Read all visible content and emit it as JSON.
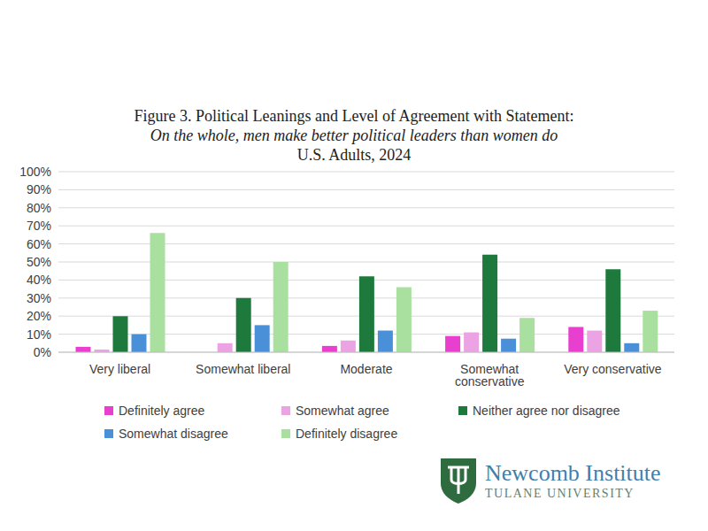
{
  "chart_data": {
    "type": "bar",
    "title": "Figure 3. Political Leanings and Level of Agreement with Statement:",
    "statement": "On the whole, men make better political leaders than women do",
    "population": "U.S. Adults, 2024",
    "categories": [
      "Very liberal",
      "Somewhat liberal",
      "Moderate",
      "Somewhat conservative",
      "Very conservative"
    ],
    "series": [
      {
        "name": "Definitely agree",
        "color": "#e83fcf",
        "values": [
          3,
          0,
          3.5,
          9,
          14
        ]
      },
      {
        "name": "Somewhat agree",
        "color": "#eba3e3",
        "values": [
          1.5,
          5,
          6.5,
          11,
          12
        ]
      },
      {
        "name": "Neither agree nor disagree",
        "color": "#1e7a3c",
        "values": [
          20,
          30,
          42,
          54,
          46
        ]
      },
      {
        "name": "Somewhat disagree",
        "color": "#4a90d9",
        "values": [
          10,
          15,
          12,
          7.5,
          5
        ]
      },
      {
        "name": "Definitely disagree",
        "color": "#a9e0a0",
        "values": [
          66,
          50,
          36,
          19,
          23
        ]
      }
    ],
    "ylim": [
      0,
      100
    ],
    "yticks": [
      {
        "value": 0,
        "label": "0%"
      },
      {
        "value": 10,
        "label": "10%"
      },
      {
        "value": 20,
        "label": "20%"
      },
      {
        "value": 30,
        "label": "30%"
      },
      {
        "value": 40,
        "label": "40%"
      },
      {
        "value": 50,
        "label": "50%"
      },
      {
        "value": 60,
        "label": "60%"
      },
      {
        "value": 70,
        "label": "70%"
      },
      {
        "value": 80,
        "label": "80%"
      },
      {
        "value": 90,
        "label": "90%"
      },
      {
        "value": 100,
        "label": "100%"
      }
    ],
    "grid": true,
    "legend": "bottom",
    "logo": {
      "name": "Newcomb Institute",
      "institution": "TULANE UNIVERSITY"
    }
  }
}
